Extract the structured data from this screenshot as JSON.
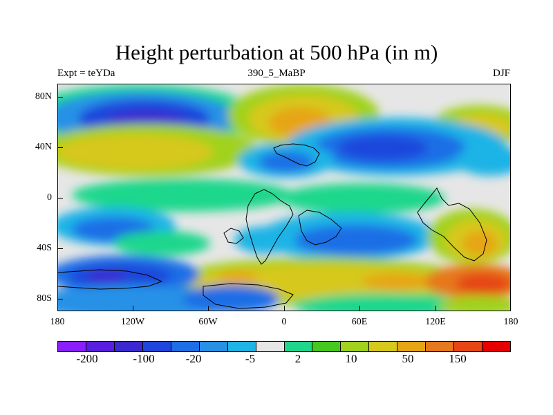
{
  "title": "Height perturbation at 500 hPa (in m)",
  "subtitle_left": "Expt = teYDa",
  "subtitle_center": "390_5_MaBP",
  "subtitle_right": "DJF",
  "lat_labels": [
    "80N",
    "40N",
    "0",
    "40S",
    "80S"
  ],
  "lon_labels": [
    "180",
    "120W",
    "60W",
    "0",
    "60E",
    "120E",
    "180"
  ],
  "colorbar": {
    "colors": [
      "#8a1eff",
      "#5a1ee0",
      "#3c28d0",
      "#1e46dc",
      "#1e6ee6",
      "#2891e6",
      "#1eb4e6",
      "#e6e6e6",
      "#1ed78c",
      "#46c81e",
      "#a0d21e",
      "#d7c81e",
      "#e6a514",
      "#e6781e",
      "#e64614",
      "#e60000"
    ],
    "labels": [
      "-200",
      "-100",
      "-20",
      "-5",
      "2",
      "10",
      "50",
      "150"
    ]
  }
}
